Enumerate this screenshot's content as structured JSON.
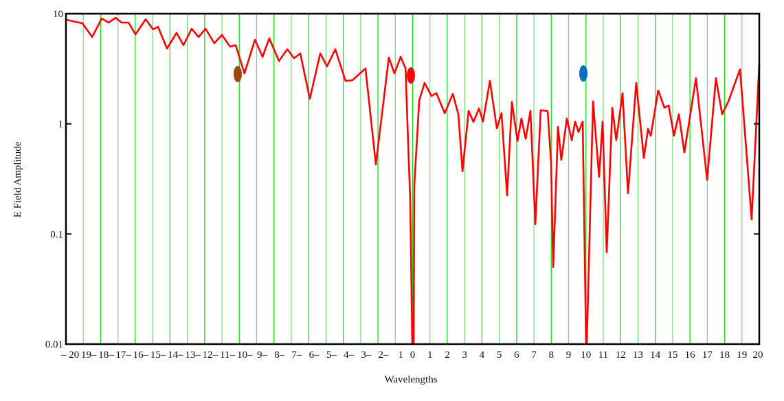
{
  "chart_data": {
    "type": "line",
    "title": "",
    "xlabel": "Wavelengths",
    "ylabel": "E Field Amplitude",
    "xlim": [
      -20,
      20
    ],
    "ylim": [
      0.01,
      10
    ],
    "yscale": "log",
    "grid": "vertical lines at every integer wavelength",
    "x_ticks": [
      -20,
      -19,
      -18,
      -17,
      -16,
      -15,
      -14,
      -13,
      -12,
      -11,
      -10,
      -9,
      -8,
      -7,
      -6,
      -5,
      -4,
      -3,
      -2,
      -1,
      0,
      1,
      2,
      3,
      4,
      5,
      6,
      7,
      8,
      9,
      10,
      11,
      12,
      13,
      14,
      15,
      16,
      17,
      18,
      19,
      20
    ],
    "x_tick_labels": [
      "– 20",
      "19–",
      "18–",
      "17–",
      "16–",
      "15–",
      "14–",
      "13–",
      "12–",
      "11–",
      "10–",
      "9–",
      "8–",
      "7–",
      "6–",
      "5–",
      "4–",
      "3–",
      "2–",
      "1",
      "0",
      "1",
      "2",
      "3",
      "4",
      "5",
      "6",
      "7",
      "8",
      "9",
      "10",
      "11",
      "12",
      "13",
      "14",
      "15",
      "16",
      "17",
      "18",
      "19",
      "20"
    ],
    "y_ticks": [
      10,
      1,
      0.1,
      0.01
    ],
    "y_tick_labels": [
      "10",
      "1",
      "0.1",
      "0.01"
    ],
    "series": [
      {
        "name": "E field amplitude",
        "color": "#ff0000",
        "points": [
          [
            -20,
            8.7
          ],
          [
            -19.96,
            8.79
          ],
          [
            -19.05,
            8.18
          ],
          [
            -18.49,
            6.14
          ],
          [
            -17.94,
            9.04
          ],
          [
            -17.54,
            8.3
          ],
          [
            -17.14,
            9.18
          ],
          [
            -16.79,
            8.3
          ],
          [
            -16.39,
            8.3
          ],
          [
            -15.99,
            6.5
          ],
          [
            -15.4,
            8.91
          ],
          [
            -14.97,
            7.19
          ],
          [
            -14.69,
            7.62
          ],
          [
            -14.17,
            4.82
          ],
          [
            -13.62,
            6.7
          ],
          [
            -13.22,
            5.18
          ],
          [
            -12.75,
            7.3
          ],
          [
            -12.35,
            6.14
          ],
          [
            -11.95,
            7.3
          ],
          [
            -11.44,
            5.4
          ],
          [
            -11.0,
            6.41
          ],
          [
            -10.53,
            5.02
          ],
          [
            -10.21,
            5.18
          ],
          [
            -9.7,
            2.87
          ],
          [
            -9.1,
            5.81
          ],
          [
            -8.66,
            4.06
          ],
          [
            -8.27,
            5.97
          ],
          [
            -7.71,
            3.72
          ],
          [
            -7.23,
            4.75
          ],
          [
            -6.84,
            3.94
          ],
          [
            -6.48,
            4.36
          ],
          [
            -5.93,
            1.69
          ],
          [
            -5.33,
            4.36
          ],
          [
            -4.94,
            3.32
          ],
          [
            -4.46,
            4.75
          ],
          [
            -3.87,
            2.45
          ],
          [
            -3.47,
            2.49
          ],
          [
            -2.72,
            3.18
          ],
          [
            -2.12,
            0.428
          ],
          [
            -1.37,
            4.0
          ],
          [
            -1.05,
            2.87
          ],
          [
            -0.69,
            4.06
          ],
          [
            -0.41,
            3.18
          ],
          [
            -0.21,
            0.41
          ],
          [
            -0.14,
            0.209
          ],
          [
            -0.02,
            0.01
          ],
          [
            0.06,
            0.01
          ],
          [
            0.1,
            0.278
          ],
          [
            0.38,
            1.62
          ],
          [
            0.69,
            2.35
          ],
          [
            1.09,
            1.79
          ],
          [
            1.37,
            1.9
          ],
          [
            1.85,
            1.25
          ],
          [
            2.32,
            1.87
          ],
          [
            2.64,
            1.22
          ],
          [
            2.88,
            0.371
          ],
          [
            3.23,
            1.31
          ],
          [
            3.51,
            1.04
          ],
          [
            3.83,
            1.38
          ],
          [
            4.06,
            1.05
          ],
          [
            4.46,
            2.45
          ],
          [
            4.86,
            0.91
          ],
          [
            5.13,
            1.25
          ],
          [
            5.45,
            0.224
          ],
          [
            5.73,
            1.58
          ],
          [
            6.05,
            0.7
          ],
          [
            6.28,
            1.12
          ],
          [
            6.52,
            0.73
          ],
          [
            6.8,
            1.31
          ],
          [
            7.08,
            0.123
          ],
          [
            7.39,
            1.33
          ],
          [
            7.79,
            1.31
          ],
          [
            7.99,
            0.447
          ],
          [
            8.11,
            0.05
          ],
          [
            8.39,
            0.94
          ],
          [
            8.58,
            0.47
          ],
          [
            8.9,
            1.12
          ],
          [
            9.18,
            0.71
          ],
          [
            9.38,
            1.05
          ],
          [
            9.57,
            0.84
          ],
          [
            9.81,
            1.05
          ],
          [
            10.01,
            0.01
          ],
          [
            10.05,
            0.01
          ],
          [
            10.41,
            1.6
          ],
          [
            10.76,
            0.33
          ],
          [
            10.96,
            1.05
          ],
          [
            11.2,
            0.068
          ],
          [
            11.52,
            1.4
          ],
          [
            11.75,
            0.71
          ],
          [
            12.11,
            1.9
          ],
          [
            12.43,
            0.234
          ],
          [
            12.9,
            2.35
          ],
          [
            13.34,
            0.49
          ],
          [
            13.58,
            0.9
          ],
          [
            13.74,
            0.78
          ],
          [
            14.17,
            2.01
          ],
          [
            14.53,
            1.4
          ],
          [
            14.77,
            1.47
          ],
          [
            15.08,
            0.78
          ],
          [
            15.36,
            1.22
          ],
          [
            15.68,
            0.55
          ],
          [
            16.35,
            2.6
          ],
          [
            16.99,
            0.31
          ],
          [
            17.5,
            2.6
          ],
          [
            17.86,
            1.22
          ],
          [
            18.22,
            1.6
          ],
          [
            18.89,
            3.13
          ],
          [
            19.56,
            0.136
          ],
          [
            20.0,
            3.52
          ]
        ]
      }
    ],
    "markers": [
      {
        "name": "brown-marker",
        "x": -10.09,
        "y": 2.83,
        "color": "#964b0e"
      },
      {
        "name": "red-marker",
        "x": -0.1,
        "y": 2.75,
        "color": "#ff0000"
      },
      {
        "name": "blue-marker",
        "x": 9.85,
        "y": 2.87,
        "color": "#0070c0"
      }
    ],
    "gridline_colors": [
      "#00e400",
      "#7ad67a"
    ],
    "axis_color": "#000000"
  }
}
